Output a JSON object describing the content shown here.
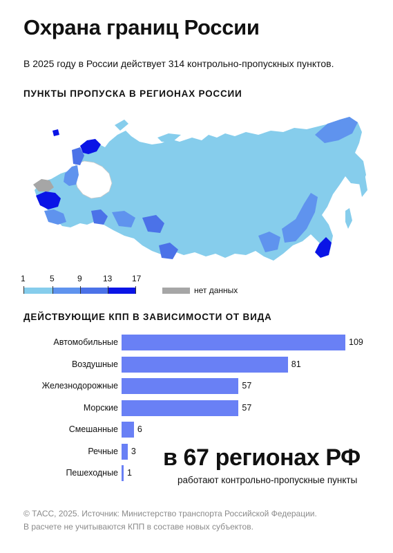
{
  "header": {
    "title": "Охрана границ России",
    "subtitle": "В 2025 году в России действует 314 контрольно-пропускных пунктов."
  },
  "map": {
    "heading": "ПУНКТЫ ПРОПУСКА В РЕГИОНАХ РОССИИ",
    "legend": {
      "ticks": [
        "1",
        "5",
        "9",
        "13",
        "17"
      ],
      "colors": [
        "#86cdec",
        "#5f93ee",
        "#4b72e8",
        "#0a14e6"
      ],
      "no_data_label": "нет данных",
      "no_data_color": "#a6a6a6"
    }
  },
  "chart_data": {
    "type": "bar",
    "title": "ДЕЙСТВУЮЩИЕ КПП В ЗАВИСИМОСТИ ОТ ВИДА",
    "orientation": "horizontal",
    "categories": [
      "Автомобильные",
      "Воздушные",
      "Железнодорожные",
      "Морские",
      "Смешанные",
      "Речные",
      "Пешеходные"
    ],
    "values": [
      109,
      81,
      57,
      57,
      6,
      3,
      1
    ],
    "xlim": [
      0,
      109
    ],
    "bar_color": "#6980f5",
    "grid": false
  },
  "highlight": {
    "big": "в 67 регионах РФ",
    "sub": "работают контрольно-пропускные пункты"
  },
  "footer": {
    "line1": "© ТАСС, 2025. Источник: Министерство транспорта Российской Федерации.",
    "line2": "В расчете не учитываются КПП в составе новых субъектов."
  }
}
